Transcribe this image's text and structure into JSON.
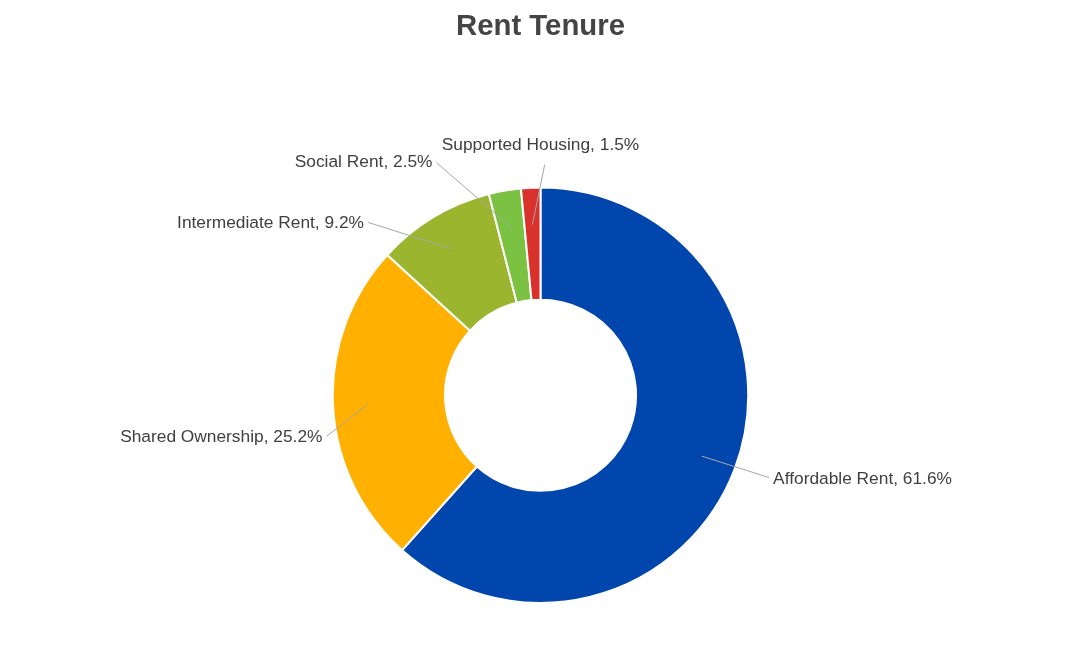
{
  "chart_data": {
    "type": "donut",
    "title": "Rent Tenure",
    "categories": [
      "Affordable Rent",
      "Shared Ownership",
      "Intermediate Rent",
      "Social Rent",
      "Supported Housing"
    ],
    "values": [
      61.6,
      25.2,
      9.2,
      2.5,
      1.5
    ],
    "value_labels": [
      "61.6%",
      "25.2%",
      "9.2%",
      "2.5%",
      "1.5%"
    ],
    "colors": [
      "#0046ad",
      "#ffb000",
      "#9cb52e",
      "#7cc242",
      "#d9312b"
    ],
    "legend": false
  }
}
